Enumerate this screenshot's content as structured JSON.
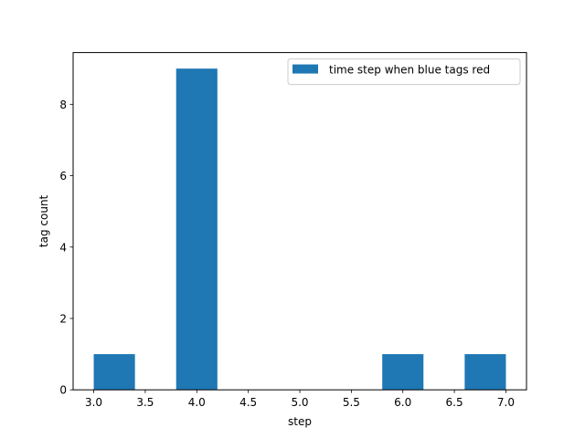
{
  "chart_data": {
    "type": "bar",
    "title": "",
    "xlabel": "step",
    "ylabel": "tag count",
    "xlim": [
      2.8,
      7.2
    ],
    "ylim": [
      0,
      9.45
    ],
    "xticks": [
      3.0,
      3.5,
      4.0,
      4.5,
      5.0,
      5.5,
      6.0,
      6.5,
      7.0
    ],
    "xtick_labels": [
      "3.0",
      "3.5",
      "4.0",
      "4.5",
      "5.0",
      "5.5",
      "6.0",
      "6.5",
      "7.0"
    ],
    "yticks": [
      0,
      2,
      4,
      6,
      8
    ],
    "ytick_labels": [
      "0",
      "2",
      "4",
      "6",
      "8"
    ],
    "bins": [
      {
        "start": 3.0,
        "end": 3.4,
        "value": 1
      },
      {
        "start": 3.4,
        "end": 3.8,
        "value": 0
      },
      {
        "start": 3.8,
        "end": 4.2,
        "value": 9
      },
      {
        "start": 4.2,
        "end": 4.6,
        "value": 0
      },
      {
        "start": 4.6,
        "end": 5.0,
        "value": 0
      },
      {
        "start": 5.0,
        "end": 5.4,
        "value": 0
      },
      {
        "start": 5.4,
        "end": 5.8,
        "value": 0
      },
      {
        "start": 5.8,
        "end": 6.2,
        "value": 1
      },
      {
        "start": 6.2,
        "end": 6.6,
        "value": 0
      },
      {
        "start": 6.6,
        "end": 7.0,
        "value": 1
      }
    ],
    "series": [
      {
        "name": "time step when blue tags red",
        "color": "#1f77b4"
      }
    ],
    "legend": {
      "position": "upper-right"
    },
    "grid": false
  }
}
